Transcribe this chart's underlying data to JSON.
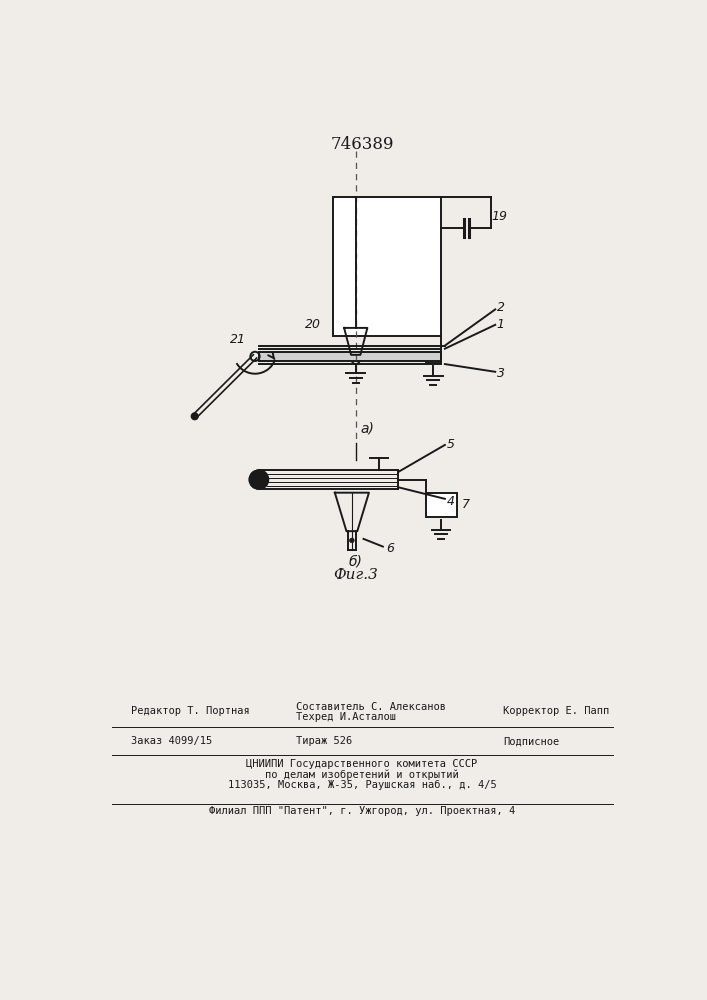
{
  "title": "746389",
  "bg_color": "#f0ede8",
  "line_color": "#1a1a1a",
  "fig_label_a": "а)",
  "fig_label_b": "б)",
  "fig_caption": "Фиг.3"
}
